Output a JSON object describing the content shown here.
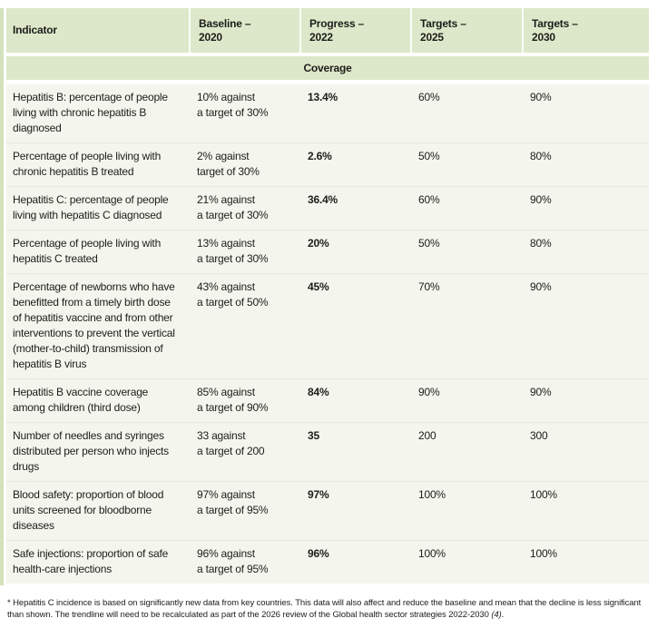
{
  "colors": {
    "header_green": "#dce8c9",
    "body_cream": "#f4f5ec",
    "accent_green": "#d3e2ba",
    "text_dark": "#1d1d1b",
    "row_divider": "#e6e8d8"
  },
  "table": {
    "columns": [
      {
        "label": "Indicator"
      },
      {
        "label": "Baseline –\n2020"
      },
      {
        "label": "Progress –\n2022"
      },
      {
        "label": "Targets –\n2025"
      },
      {
        "label": "Targets –\n2030"
      }
    ],
    "section_header": "Coverage",
    "rows": [
      {
        "indicator": "Hepatitis B: percentage of people living with chronic hepatitis B diagnosed",
        "baseline": "10% against\na target of 30%",
        "progress": "13.4%",
        "targets_2025": "60%",
        "targets_2030": "90%"
      },
      {
        "indicator": "Percentage of people living with chronic hepatitis B treated",
        "baseline": "2% against\ntarget of 30%",
        "progress": "2.6%",
        "targets_2025": "50%",
        "targets_2030": "80%"
      },
      {
        "indicator": "Hepatitis C: percentage of people living with hepatitis C diagnosed",
        "baseline": "21% against\na target of 30%",
        "progress": "36.4%",
        "targets_2025": "60%",
        "targets_2030": "90%"
      },
      {
        "indicator": "Percentage of people living with hepatitis C treated",
        "baseline": "13% against\na target of 30%",
        "progress": "20%",
        "targets_2025": "50%",
        "targets_2030": "80%"
      },
      {
        "indicator": "Percentage of newborns who have benefitted from a timely birth dose of hepatitis vaccine and from other interventions to prevent the vertical (mother-to-child) transmission of hepatitis B virus",
        "baseline": "43% against\na target of 50%",
        "progress": "45%",
        "targets_2025": "70%",
        "targets_2030": "90%"
      },
      {
        "indicator": "Hepatitis B vaccine coverage among children (third dose)",
        "baseline": "85% against\na target of 90%",
        "progress": "84%",
        "targets_2025": "90%",
        "targets_2030": "90%"
      },
      {
        "indicator": "Number of needles and syringes distributed per person who injects drugs",
        "baseline": "33 against\na target of 200",
        "progress": "35",
        "targets_2025": "200",
        "targets_2030": "300"
      },
      {
        "indicator": "Blood safety: proportion of blood units screened for bloodborne diseases",
        "baseline": "97% against\na target of 95%",
        "progress": "97%",
        "targets_2025": "100%",
        "targets_2030": "100%"
      },
      {
        "indicator": "Safe injections: proportion of safe health-care injections",
        "baseline": "96% against\na target of 95%",
        "progress": "96%",
        "targets_2025": "100%",
        "targets_2030": "100%"
      }
    ]
  },
  "footnote": {
    "text": "* Hepatitis C incidence is based on significantly new data from key countries. This data will also affect and reduce the baseline and mean that the decline is less significant than shown. The trendline will need to be recalculated as part of the 2026 review of the Global health sector strategies 2022-2030 ",
    "reference": "(4)",
    "suffix": "."
  }
}
